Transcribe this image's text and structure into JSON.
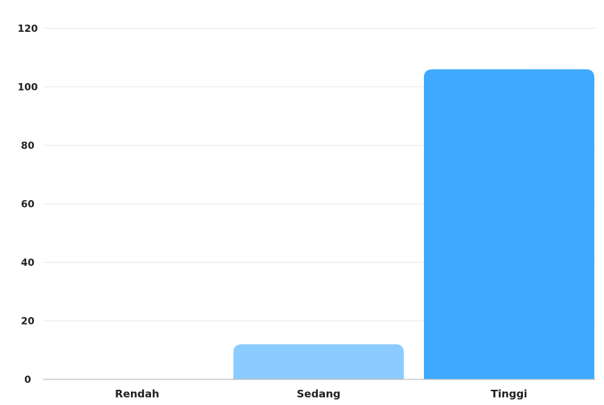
{
  "chart_data": {
    "type": "bar",
    "title": "",
    "xlabel": "",
    "ylabel": "",
    "categories": [
      "Rendah",
      "Sedang",
      "Tinggi"
    ],
    "values": [
      0,
      12,
      106
    ],
    "ylim": [
      0,
      120
    ],
    "yticks": [
      0,
      20,
      40,
      60,
      80,
      100,
      120
    ],
    "grid": true,
    "legend": "none",
    "colors": [
      "#3fa9ff",
      "#8ccbff",
      "#3fa9ff"
    ]
  },
  "colors": {
    "grid": "#e6e6e6",
    "axis": "#bdbdbd",
    "text": "#222222"
  }
}
